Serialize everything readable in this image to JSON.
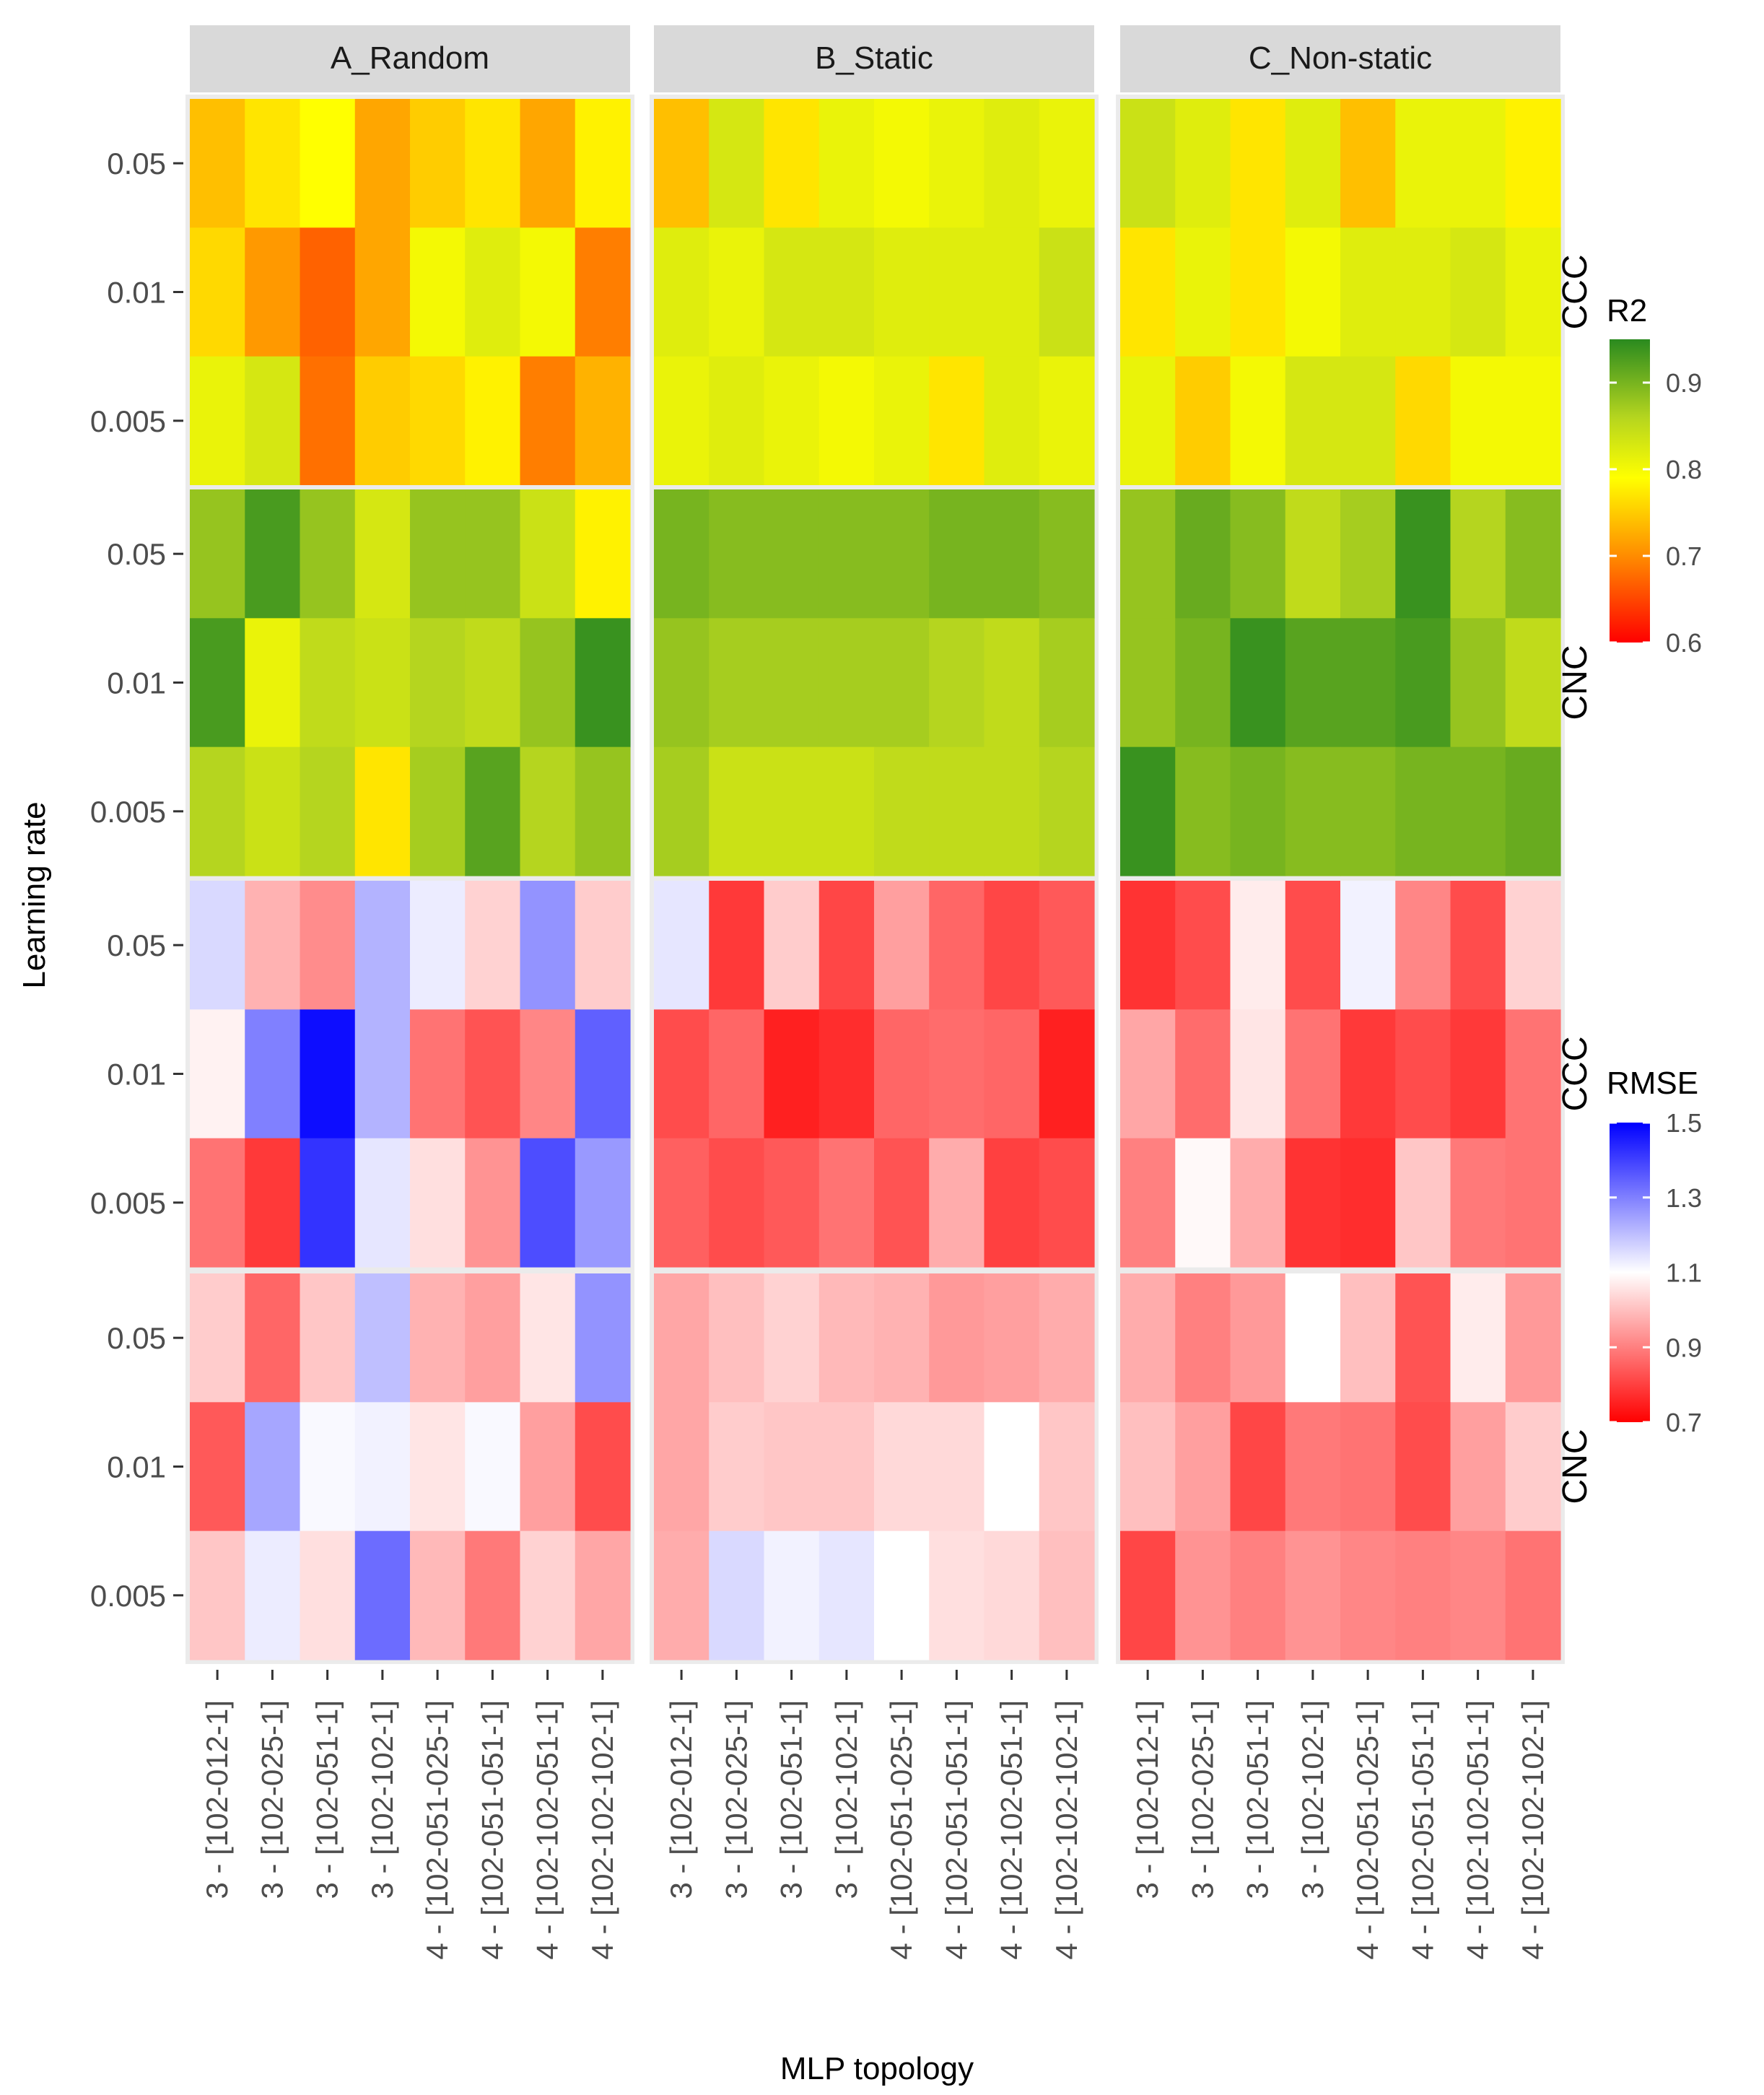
{
  "chart_data": {
    "type": "heatmap",
    "xlabel": "MLP topology",
    "ylabel": "Learning rate",
    "columns": [
      "A_Random",
      "B_Static",
      "C_Non-static"
    ],
    "x_categories": [
      "3 - [102-012-1]",
      "3 - [102-025-1]",
      "3 - [102-051-1]",
      "3 - [102-102-1]",
      "4 - [102-051-025-1]",
      "4 - [102-051-051-1]",
      "4 - [102-102-051-1]",
      "4 - [102-102-102-1]"
    ],
    "y_categories": [
      "0.05",
      "0.01",
      "0.005"
    ],
    "row_strips": [
      "CCC",
      "CNC",
      "CCC",
      "CNC"
    ],
    "legends": {
      "R2": {
        "title": "R2",
        "range": [
          0.6,
          0.95
        ],
        "breaks": [
          0.6,
          0.7,
          0.8,
          0.9
        ],
        "break_labels": [
          "0.6",
          "0.7",
          "0.8",
          "0.9"
        ],
        "colors": [
          "#ff0000",
          "#ff8c00",
          "#ffff00",
          "#b5d51f",
          "#2a8a1f"
        ],
        "color_stops": [
          0.6,
          0.7,
          0.79,
          0.86,
          0.95
        ]
      },
      "RMSE": {
        "title": "RMSE",
        "range": [
          0.7,
          1.5
        ],
        "breaks": [
          0.7,
          0.9,
          1.1,
          1.3,
          1.5
        ],
        "break_labels": [
          "0.7",
          "0.9",
          "1.1",
          "1.3",
          "1.5"
        ],
        "colors": [
          "#ff0000",
          "#ffffff",
          "#0000ff"
        ],
        "color_stops": [
          0.7,
          1.1,
          1.5
        ]
      }
    },
    "panels": [
      {
        "row": "CCC",
        "metric": "R2",
        "values": [
          [
            [
              0.74,
              0.77,
              0.79,
              0.72,
              0.75,
              0.77,
              0.72,
              0.78
            ],
            [
              0.76,
              0.71,
              0.67,
              0.72,
              0.8,
              0.82,
              0.8,
              0.69
            ],
            [
              0.81,
              0.83,
              0.68,
              0.75,
              0.76,
              0.78,
              0.69,
              0.73
            ]
          ],
          [
            [
              0.74,
              0.83,
              0.77,
              0.81,
              0.8,
              0.81,
              0.82,
              0.81
            ],
            [
              0.82,
              0.81,
              0.83,
              0.83,
              0.82,
              0.82,
              0.82,
              0.84
            ],
            [
              0.81,
              0.82,
              0.81,
              0.8,
              0.81,
              0.77,
              0.82,
              0.81
            ]
          ],
          [
            [
              0.84,
              0.82,
              0.77,
              0.82,
              0.74,
              0.81,
              0.81,
              0.78
            ],
            [
              0.77,
              0.81,
              0.77,
              0.8,
              0.82,
              0.82,
              0.83,
              0.81
            ],
            [
              0.81,
              0.75,
              0.8,
              0.83,
              0.83,
              0.76,
              0.8,
              0.8
            ]
          ]
        ]
      },
      {
        "row": "CNC",
        "metric": "R2",
        "values": [
          [
            [
              0.88,
              0.93,
              0.88,
              0.83,
              0.88,
              0.88,
              0.84,
              0.78
            ],
            [
              0.93,
              0.81,
              0.85,
              0.84,
              0.86,
              0.85,
              0.88,
              0.94
            ],
            [
              0.86,
              0.84,
              0.86,
              0.77,
              0.87,
              0.92,
              0.86,
              0.88
            ]
          ],
          [
            [
              0.9,
              0.89,
              0.89,
              0.89,
              0.89,
              0.9,
              0.9,
              0.89
            ],
            [
              0.88,
              0.87,
              0.87,
              0.87,
              0.87,
              0.86,
              0.85,
              0.87
            ],
            [
              0.87,
              0.84,
              0.84,
              0.84,
              0.85,
              0.85,
              0.85,
              0.86
            ]
          ],
          [
            [
              0.88,
              0.91,
              0.89,
              0.85,
              0.87,
              0.94,
              0.86,
              0.89
            ],
            [
              0.88,
              0.9,
              0.94,
              0.92,
              0.92,
              0.93,
              0.88,
              0.85
            ],
            [
              0.94,
              0.89,
              0.9,
              0.89,
              0.89,
              0.9,
              0.9,
              0.91
            ]
          ]
        ]
      },
      {
        "row": "CCC",
        "metric": "RMSE",
        "values": [
          [
            [
              1.16,
              0.98,
              0.92,
              1.22,
              1.13,
              1.03,
              1.27,
              1.02
            ],
            [
              1.08,
              1.3,
              1.48,
              1.22,
              0.88,
              0.83,
              0.91,
              1.35
            ],
            [
              0.88,
              0.79,
              1.42,
              1.14,
              1.05,
              0.93,
              1.38,
              1.26
            ]
          ],
          [
            [
              1.14,
              0.79,
              1.02,
              0.81,
              0.95,
              0.86,
              0.81,
              0.84
            ],
            [
              0.82,
              0.86,
              0.75,
              0.77,
              0.86,
              0.87,
              0.86,
              0.75
            ],
            [
              0.85,
              0.82,
              0.84,
              0.88,
              0.83,
              0.97,
              0.8,
              0.82
            ]
          ],
          [
            [
              0.78,
              0.82,
              1.07,
              0.82,
              1.12,
              0.91,
              0.82,
              1.03
            ],
            [
              0.96,
              0.87,
              1.06,
              0.88,
              0.79,
              0.82,
              0.79,
              0.88
            ],
            [
              0.9,
              1.09,
              0.97,
              0.78,
              0.77,
              1.01,
              0.89,
              0.88
            ]
          ]
        ]
      },
      {
        "row": "CNC",
        "metric": "RMSE",
        "values": [
          [
            [
              1.02,
              0.86,
              1.01,
              1.2,
              0.98,
              0.95,
              1.06,
              1.27
            ],
            [
              0.84,
              1.24,
              1.11,
              1.12,
              1.06,
              1.11,
              0.95,
              0.82
            ],
            [
              1.01,
              1.13,
              1.05,
              1.33,
              0.99,
              0.89,
              1.03,
              0.96
            ]
          ],
          [
            [
              0.96,
              1.0,
              1.03,
              0.99,
              0.98,
              0.94,
              0.95,
              0.97
            ],
            [
              0.96,
              1.02,
              1.01,
              1.01,
              1.04,
              1.04,
              1.1,
              1.01
            ],
            [
              0.97,
              1.16,
              1.12,
              1.14,
              1.1,
              1.05,
              1.04,
              1.0
            ]
          ],
          [
            [
              0.97,
              0.9,
              0.94,
              1.1,
              1.0,
              0.83,
              1.07,
              0.94
            ],
            [
              1.0,
              0.95,
              0.81,
              0.89,
              0.88,
              0.82,
              0.95,
              1.02
            ],
            [
              0.81,
              0.93,
              0.9,
              0.93,
              0.91,
              0.9,
              0.91,
              0.88
            ]
          ]
        ]
      }
    ]
  }
}
